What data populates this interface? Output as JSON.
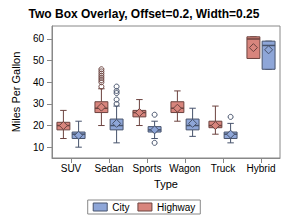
{
  "chart_data": {
    "type": "boxplot",
    "title": "Two Box Overlay, Offset=0.2, Width=0.25",
    "x_label": "Type",
    "y_label": "Miles Per Gallon",
    "categories": [
      "SUV",
      "Sedan",
      "Sports",
      "Wagon",
      "Truck",
      "Hybrid"
    ],
    "series": [
      {
        "name": "Highway",
        "color": "#d8857d",
        "boxes": [
          [
            14,
            18,
            20,
            21.5,
            27
          ],
          [
            20,
            26,
            28,
            31,
            37
          ],
          [
            20,
            24,
            26,
            27,
            32
          ],
          [
            22,
            26,
            28,
            31,
            36
          ],
          [
            16,
            19,
            20,
            22,
            29
          ],
          [
            51,
            51,
            60,
            61,
            61
          ]
        ],
        "means": [
          20,
          28.5,
          26,
          28,
          20,
          56
        ],
        "outliers": [
          [],
          [
            38,
            40,
            41,
            42,
            43,
            44,
            45,
            46
          ],
          [],
          [],
          [],
          []
        ]
      },
      {
        "name": "City",
        "color": "#8ea6d8",
        "boxes": [
          [
            10,
            14,
            16,
            17,
            22
          ],
          [
            12,
            18,
            20,
            23,
            29
          ],
          [
            14,
            17,
            18,
            19.5,
            22
          ],
          [
            15,
            18,
            20,
            23,
            28
          ],
          [
            12,
            14,
            16,
            17,
            21
          ],
          [
            46,
            46,
            57,
            59,
            59
          ]
        ],
        "means": [
          15.5,
          21,
          18,
          21,
          16,
          55
        ],
        "outliers": [
          [],
          [
            30,
            32,
            35,
            36,
            38
          ],
          [
            12,
            25
          ],
          [],
          [
            24
          ],
          []
        ]
      }
    ],
    "ylim": [
      5,
      66
    ],
    "yticks": [
      10,
      20,
      30,
      40,
      50,
      60
    ],
    "grid": false,
    "legend": "bottom"
  }
}
